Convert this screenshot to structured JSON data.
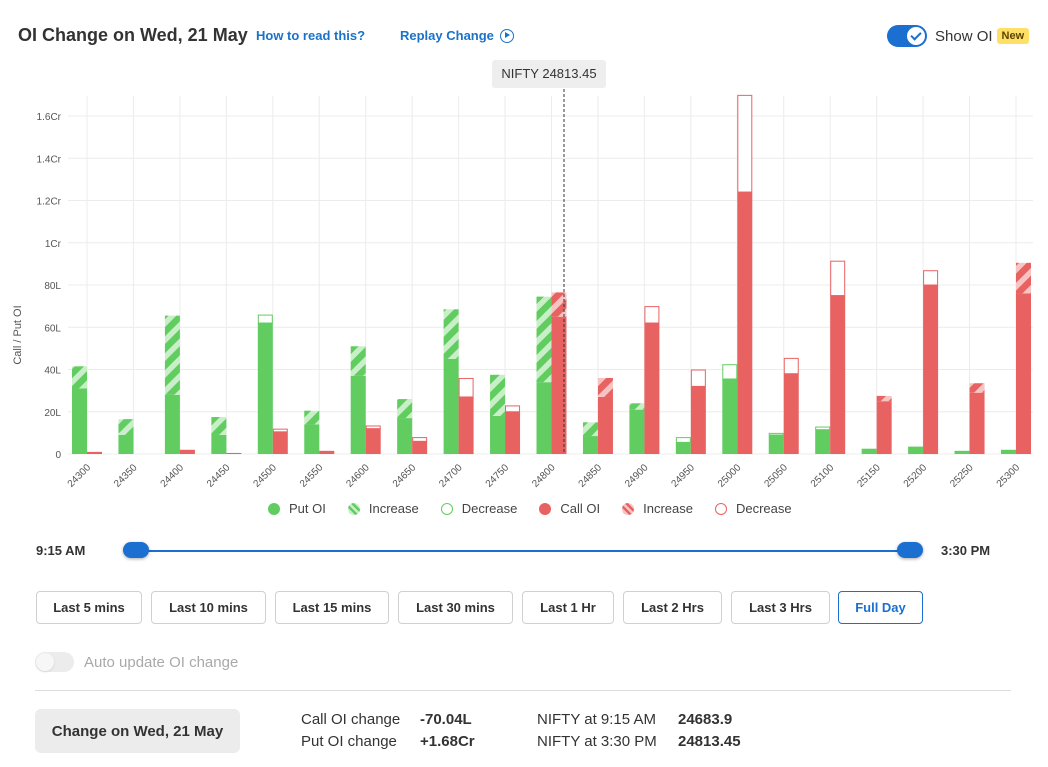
{
  "header": {
    "title": "OI Change on Wed, 21 May",
    "how_link": "How to read this?",
    "replay_link": "Replay Change",
    "show_oi_label": "Show OI",
    "new_badge": "New"
  },
  "tooltip": {
    "label": "NIFTY 24813.45"
  },
  "chart_data": {
    "type": "bar",
    "ylabel": "Call / Put OI",
    "ylim": [
      0,
      1.7
    ],
    "y_unit": "Cr",
    "y_ticks": [
      {
        "value": 0,
        "label": "0"
      },
      {
        "value": 0.2,
        "label": "20L"
      },
      {
        "value": 0.4,
        "label": "40L"
      },
      {
        "value": 0.6,
        "label": "60L"
      },
      {
        "value": 0.8,
        "label": "80L"
      },
      {
        "value": 1.0,
        "label": "1Cr"
      },
      {
        "value": 1.2,
        "label": "1.2Cr"
      },
      {
        "value": 1.4,
        "label": "1.4Cr"
      },
      {
        "value": 1.6,
        "label": "1.6Cr"
      }
    ],
    "spot": 24813.45,
    "categories": [
      "24300",
      "24350",
      "24400",
      "24450",
      "24500",
      "24550",
      "24600",
      "24650",
      "24700",
      "24750",
      "24800",
      "24850",
      "24900",
      "24950",
      "25000",
      "25050",
      "25100",
      "25150",
      "25200",
      "25250",
      "25300"
    ],
    "series": [
      {
        "name": "Put OI",
        "base": [
          0.31,
          0.09,
          0.28,
          0.09,
          0.62,
          0.14,
          0.37,
          0.17,
          0.45,
          0.18,
          0.34,
          0.085,
          0.21,
          0.055,
          0.355,
          0.09,
          0.115,
          0.025,
          0.035,
          0.015,
          0.02
        ]
      },
      {
        "name": "Put OI Increase",
        "values": [
          0.105,
          0.075,
          0.375,
          0.085,
          0,
          0.065,
          0.14,
          0.09,
          0.235,
          0.195,
          0.405,
          0.065,
          0.03,
          0,
          0,
          0,
          0,
          0,
          0,
          0,
          0
        ]
      },
      {
        "name": "Put OI Decrease",
        "values": [
          0,
          0,
          0,
          0,
          0.04,
          0,
          0,
          0,
          0,
          0,
          0,
          0,
          0,
          0.025,
          0.07,
          0.01,
          0.015,
          0,
          0,
          0,
          0
        ]
      },
      {
        "name": "Call OI",
        "base": [
          0.01,
          0,
          0.02,
          0.005,
          0.105,
          0.015,
          0.12,
          0.06,
          0.27,
          0.2,
          0.65,
          0.27,
          0.62,
          0.32,
          1.24,
          0.38,
          0.75,
          0.25,
          0.8,
          0.29,
          0.76
        ]
      },
      {
        "name": "Call OI Increase",
        "values": [
          0,
          0,
          0,
          0,
          0,
          0,
          0,
          0,
          0,
          0,
          0.115,
          0.09,
          0,
          0,
          0,
          0,
          0,
          0.025,
          0,
          0.045,
          0.145
        ]
      },
      {
        "name": "Call OI Decrease",
        "values": [
          0,
          0,
          0,
          0,
          0.015,
          0,
          0.015,
          0.02,
          0.09,
          0.03,
          0,
          0,
          0.08,
          0.08,
          0.46,
          0.075,
          0.165,
          0,
          0.07,
          0,
          0
        ]
      }
    ],
    "legend": [
      "Put OI",
      "Increase",
      "Decrease",
      "Call OI",
      "Increase",
      "Decrease"
    ],
    "colors": {
      "put": "#61cd60",
      "put_light": "#c8efc8",
      "call": "#e96262",
      "call_light": "#f7c4c4"
    }
  },
  "slider": {
    "start": "9:15 AM",
    "end": "3:30 PM"
  },
  "ranges": [
    {
      "label": "Last 5 mins",
      "active": false
    },
    {
      "label": "Last 10 mins",
      "active": false
    },
    {
      "label": "Last 15 mins",
      "active": false
    },
    {
      "label": "Last 30 mins",
      "active": false
    },
    {
      "label": "Last 1 Hr",
      "active": false
    },
    {
      "label": "Last 2 Hrs",
      "active": false
    },
    {
      "label": "Last 3 Hrs",
      "active": false
    },
    {
      "label": "Full Day",
      "active": true
    }
  ],
  "auto_update": {
    "label": "Auto update OI change"
  },
  "summary": {
    "button": "Change on Wed, 21 May",
    "call_label": "Call OI change",
    "call_value": "-70.04L",
    "put_label": "Put OI change",
    "put_value": "+1.68Cr",
    "nifty_start_label": "NIFTY at 9:15 AM",
    "nifty_start_value": "24683.9",
    "nifty_end_label": "NIFTY at 3:30 PM",
    "nifty_end_value": "24813.45"
  }
}
